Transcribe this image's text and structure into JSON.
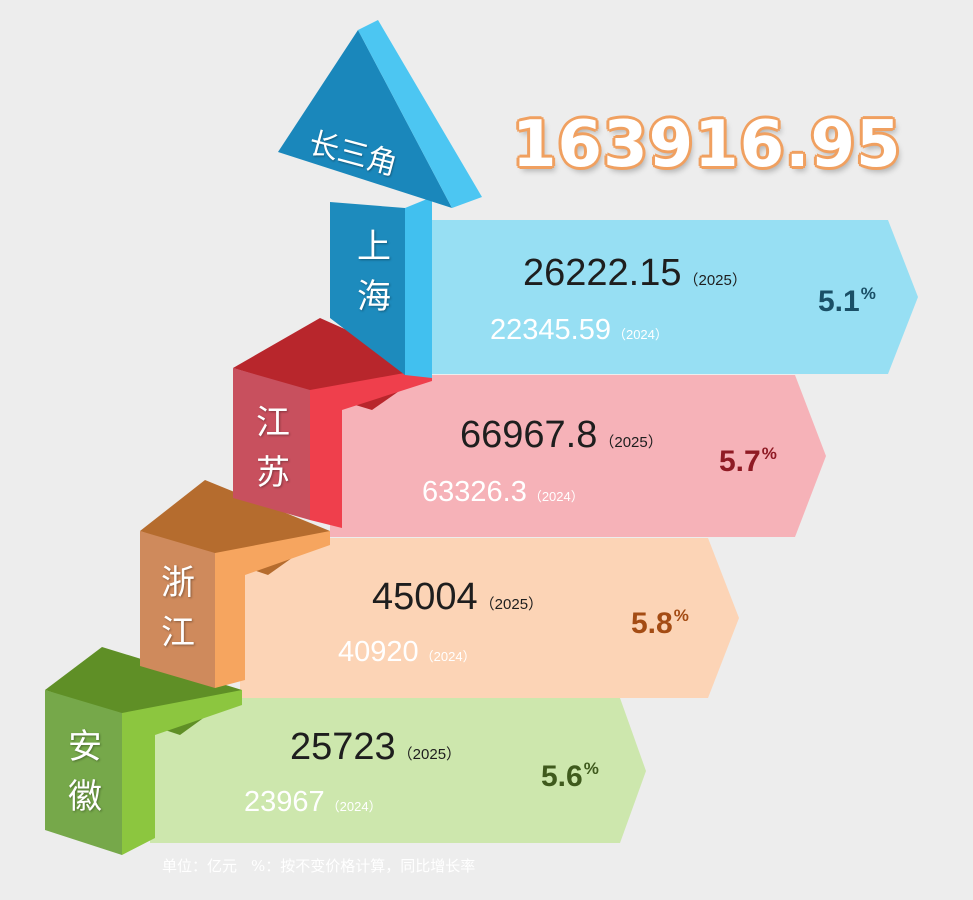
{
  "total": "163916.95",
  "arrow_label": "长三角",
  "regions": [
    {
      "key": "shanghai",
      "label": "上\n海",
      "value_2025": "26222.15",
      "year_2025": "（2025）",
      "value_2024": "22345.59",
      "year_2024": "（2024）",
      "growth": "5.1",
      "growth_unit": "%",
      "color": "#97dff3",
      "growth_color": "#1a4f66"
    },
    {
      "key": "jiangsu",
      "label": "江\n苏",
      "value_2025": "66967.8",
      "year_2025": "（2025）",
      "value_2024": "63326.3",
      "year_2024": "（2024）",
      "growth": "5.7",
      "growth_unit": "%",
      "color": "#f6b2b8",
      "growth_color": "#8f1a24"
    },
    {
      "key": "zhejiang",
      "label": "浙\n江",
      "value_2025": "45004",
      "year_2025": "（2025）",
      "value_2024": "40920",
      "year_2024": "（2024）",
      "growth": "5.8",
      "growth_unit": "%",
      "color": "#fcd4b6",
      "growth_color": "#a44c14"
    },
    {
      "key": "anhui",
      "label": "安\n徽",
      "value_2025": "25723",
      "year_2025": "（2025）",
      "value_2024": "23967",
      "year_2024": "（2024）",
      "growth": "5.6",
      "growth_unit": "%",
      "color": "#cde7ad",
      "growth_color": "#3f5a1d"
    }
  ],
  "footer": {
    "unit": "单位：亿元",
    "note": "%：按不变价格计算，同比增长率"
  }
}
